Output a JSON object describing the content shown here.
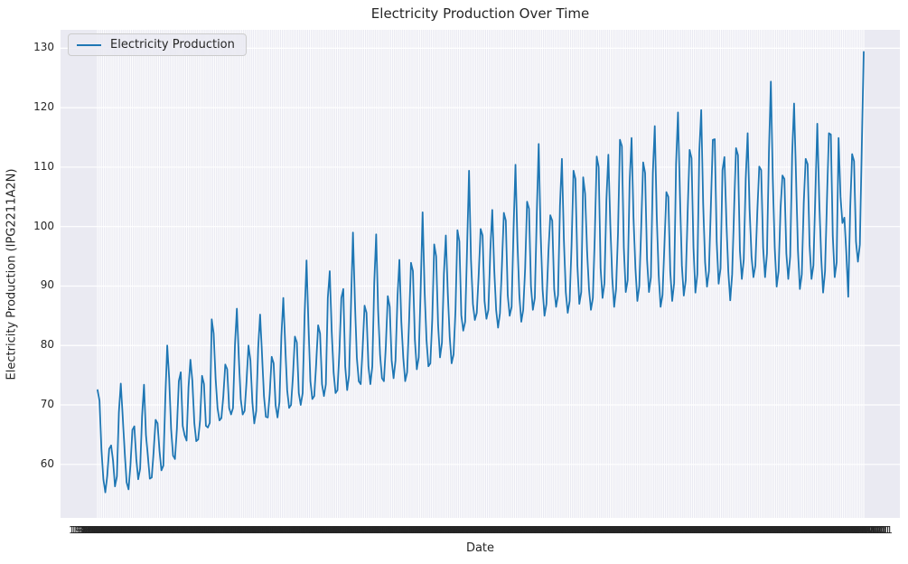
{
  "title": "Electricity Production Over Time",
  "legend": {
    "label": "Electricity Production"
  },
  "colors": {
    "line": "#1f77b4",
    "axes_background": "#eaeaf2",
    "grid": "#ffffff",
    "text": "#262626",
    "figure_background": "#ffffff"
  },
  "chart_data": {
    "type": "line",
    "title": "Electricity Production Over Time",
    "xlabel": "Date",
    "ylabel": "Electricity Production (IPG2211A2N)",
    "legend_position": "upper left",
    "grid": true,
    "yticks": [
      60,
      70,
      80,
      90,
      100,
      110,
      120,
      130
    ],
    "ylim": [
      51.0,
      133.1
    ],
    "x_start": "1985-01-01",
    "x_end": "2018-01-01",
    "x_freq": "monthly",
    "n_points": 397,
    "x_tick_label_format": "YYYY-MM-DD",
    "x_tick_labels_note": "one label per monthly point; labels overlap into a solid dark band",
    "series": [
      {
        "name": "Electricity Production",
        "color": "#1f77b4",
        "values": [
          72.5,
          70.7,
          62.5,
          57.5,
          55.3,
          58.1,
          62.6,
          63.2,
          60.6,
          56.3,
          58.0,
          68.7,
          73.6,
          68.0,
          62.2,
          57.0,
          55.8,
          59.9,
          65.8,
          66.4,
          61.0,
          57.5,
          59.3,
          68.1,
          73.4,
          65.0,
          61.4,
          57.6,
          57.8,
          62.3,
          67.5,
          66.9,
          62.3,
          59.0,
          59.8,
          71.0,
          80.0,
          74.5,
          66.0,
          61.5,
          60.9,
          66.0,
          74.0,
          75.5,
          66.5,
          64.9,
          64.0,
          73.0,
          77.6,
          74.0,
          67.0,
          63.9,
          64.2,
          67.5,
          74.9,
          73.5,
          66.5,
          66.2,
          67.0,
          84.4,
          82.0,
          74.5,
          69.5,
          67.4,
          67.8,
          71.5,
          76.8,
          76.0,
          69.5,
          68.4,
          69.5,
          80.0,
          86.2,
          78.0,
          71.0,
          68.4,
          69.0,
          74.0,
          80.0,
          77.5,
          70.5,
          66.9,
          69.0,
          79.5,
          85.2,
          78.5,
          71.5,
          68.0,
          67.9,
          72.0,
          78.1,
          77.0,
          70.0,
          67.9,
          70.5,
          81.5,
          88.0,
          80.0,
          72.5,
          69.5,
          70.0,
          75.0,
          81.5,
          80.5,
          72.0,
          70.0,
          72.0,
          85.0,
          94.3,
          83.5,
          74.0,
          71.0,
          71.5,
          77.0,
          83.4,
          82.0,
          73.5,
          71.5,
          73.5,
          88.0,
          92.5,
          82.5,
          75.5,
          72.0,
          72.5,
          79.0,
          88.0,
          89.5,
          76.5,
          72.5,
          75.0,
          87.0,
          99.0,
          87.5,
          78.0,
          74.0,
          73.5,
          79.5,
          86.7,
          85.5,
          76.5,
          73.5,
          76.5,
          90.5,
          98.7,
          86.0,
          78.5,
          74.5,
          74.0,
          80.0,
          88.3,
          86.5,
          77.5,
          74.5,
          77.5,
          88.0,
          94.4,
          84.0,
          78.0,
          74.0,
          75.5,
          84.0,
          93.9,
          92.5,
          81.0,
          76.0,
          78.0,
          89.5,
          102.4,
          89.5,
          81.0,
          76.5,
          77.0,
          84.5,
          97.0,
          95.0,
          83.5,
          78.0,
          80.5,
          92.0,
          98.5,
          89.0,
          81.5,
          77.0,
          78.5,
          86.0,
          99.4,
          97.5,
          85.1,
          82.5,
          84.0,
          96.5,
          109.4,
          94.5,
          87.0,
          84.3,
          85.5,
          92.0,
          99.6,
          98.5,
          87.5,
          84.5,
          86.0,
          96.0,
          102.8,
          93.0,
          86.0,
          83.0,
          85.5,
          93.5,
          102.3,
          101.0,
          88.5,
          85.0,
          86.5,
          99.5,
          110.4,
          97.5,
          88.5,
          84.0,
          86.0,
          93.0,
          104.2,
          103.0,
          90.0,
          86.0,
          88.0,
          102.0,
          113.9,
          99.0,
          89.5,
          85.0,
          87.0,
          95.5,
          101.9,
          101.0,
          89.5,
          86.5,
          88.5,
          103.5,
          111.4,
          98.0,
          89.0,
          85.5,
          87.5,
          97.0,
          109.4,
          108.0,
          93.5,
          87.0,
          89.0,
          108.3,
          105.5,
          96.0,
          89.5,
          86.0,
          88.0,
          98.5,
          111.8,
          110.0,
          93.0,
          88.0,
          90.5,
          104.5,
          112.1,
          100.5,
          91.5,
          86.5,
          89.5,
          99.0,
          114.6,
          113.5,
          96.5,
          89.0,
          91.0,
          107.5,
          114.9,
          101.5,
          93.0,
          87.5,
          90.0,
          100.0,
          110.8,
          109.0,
          94.5,
          89.0,
          91.5,
          109.0,
          116.9,
          102.0,
          92.0,
          86.5,
          88.5,
          97.0,
          105.8,
          105.0,
          92.5,
          87.5,
          90.5,
          110.5,
          119.2,
          105.5,
          93.5,
          88.4,
          91.0,
          102.5,
          112.9,
          111.5,
          96.5,
          88.9,
          92.0,
          112.5,
          119.6,
          104.0,
          94.0,
          89.9,
          92.5,
          103.5,
          114.6,
          114.7,
          97.5,
          90.4,
          93.0,
          109.5,
          111.7,
          101.0,
          92.5,
          87.6,
          92.0,
          103.0,
          113.2,
          112.0,
          96.0,
          91.2,
          94.5,
          108.0,
          115.7,
          103.0,
          95.0,
          91.5,
          93.5,
          102.5,
          110.1,
          109.5,
          96.5,
          91.5,
          95.5,
          112.5,
          124.4,
          108.0,
          96.5,
          89.9,
          92.5,
          103.0,
          108.6,
          108.0,
          95.5,
          91.2,
          95.0,
          112.0,
          120.7,
          108.5,
          96.0,
          89.5,
          92.0,
          104.0,
          111.4,
          110.5,
          97.0,
          91.2,
          93.5,
          105.5,
          117.3,
          104.5,
          95.0,
          88.9,
          92.5,
          104.5,
          115.7,
          115.5,
          98.5,
          91.5,
          94.0,
          114.9,
          105.0,
          100.6,
          101.5,
          95.6,
          88.2,
          103.0,
          112.2,
          111.0,
          97.5,
          94.1,
          97.0,
          113.5,
          129.4
        ]
      }
    ]
  }
}
